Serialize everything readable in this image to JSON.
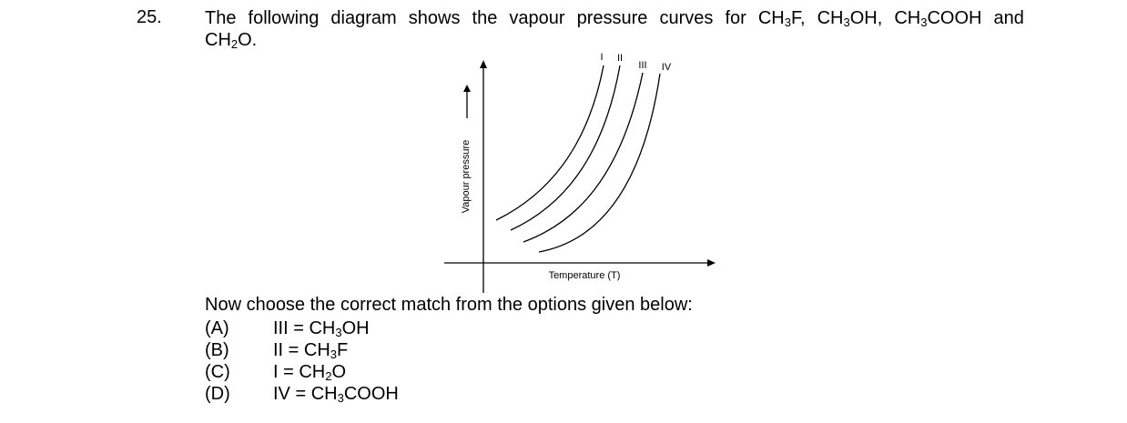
{
  "question": {
    "number": "25.",
    "stem_line1_words": [
      "The",
      "following",
      "diagram",
      "shows",
      "the",
      "vapour",
      "pressure",
      "curves",
      "for"
    ],
    "compounds": [
      {
        "pre": "CH",
        "sub": "3",
        "post": "F,"
      },
      {
        "pre": "CH",
        "sub": "3",
        "post": "OH,"
      },
      {
        "pre": "CH",
        "sub": "3",
        "post": "COOH"
      }
    ],
    "and_word": "and",
    "line2": {
      "pre": "CH",
      "sub": "2",
      "post": "O."
    },
    "prompt": "Now choose the correct match from the options given below:"
  },
  "diagram": {
    "y_axis_label": "Vapour pressure",
    "x_axis_label": "Temperature (T)",
    "curve_labels": [
      "I",
      "II",
      "III",
      "IV"
    ]
  },
  "options": [
    {
      "label": "(A)",
      "pre": "III = CH",
      "sub": "3",
      "post": "OH"
    },
    {
      "label": "(B)",
      "pre": "II = CH",
      "sub": "3",
      "post": "F"
    },
    {
      "label": "(C)",
      "pre": "I = CH",
      "sub": "2",
      "post": "O"
    },
    {
      "label": "(D)",
      "pre": "IV = CH",
      "sub": "3",
      "post": "COOH"
    }
  ]
}
